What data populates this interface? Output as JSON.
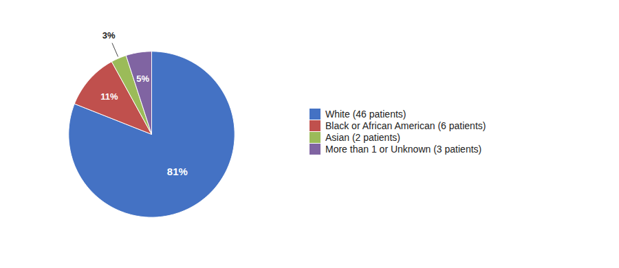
{
  "chart_data": {
    "type": "pie",
    "labels": [
      "White (46 patients)",
      "Black or African American (6 patients)",
      "Asian (2 patients)",
      "More than 1 or Unknown (3 patients)"
    ],
    "values": [
      81,
      11,
      3,
      5
    ],
    "value_labels": [
      "81%",
      "11%",
      "3%",
      "5%"
    ],
    "colors": [
      "#4472C4",
      "#C0504D",
      "#9BBB59",
      "#8064A2"
    ],
    "data_labels": true,
    "legend": "right"
  }
}
